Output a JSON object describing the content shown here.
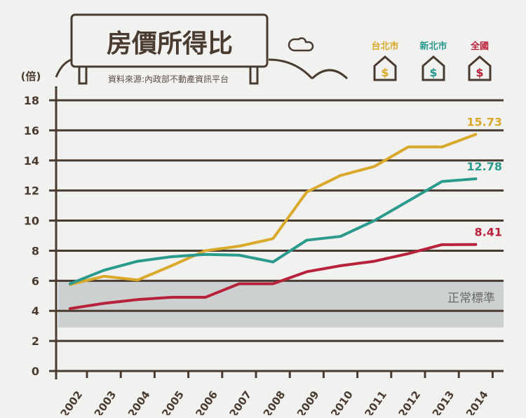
{
  "chart_data": {
    "type": "line",
    "title": "房價所得比",
    "source": "資料來源:內政部不動產資訊平台",
    "ylabel": "(倍)",
    "ylim": [
      0,
      18
    ],
    "yticks": [
      0,
      2,
      4,
      6,
      8,
      10,
      12,
      14,
      16,
      18
    ],
    "categories": [
      "2002",
      "2003",
      "2004",
      "2005",
      "2006",
      "2007",
      "2008",
      "2009",
      "2010",
      "2011",
      "2012",
      "2013",
      "2014"
    ],
    "grid": true,
    "legend_position": "top-right",
    "normal_band": {
      "label": "正常標準",
      "range": [
        2.9,
        6
      ]
    },
    "series": [
      {
        "name": "台北市",
        "color": "#d9a92b",
        "end_label": "15.73",
        "values": [
          5.75,
          6.3,
          6.05,
          7.0,
          8.0,
          8.3,
          8.8,
          11.9,
          13.0,
          13.6,
          14.9,
          14.9,
          15.73
        ]
      },
      {
        "name": "新北市",
        "color": "#2a9a8c",
        "end_label": "12.78",
        "values": [
          5.8,
          6.7,
          7.3,
          7.6,
          7.75,
          7.7,
          7.25,
          8.7,
          8.95,
          10.0,
          11.3,
          12.6,
          12.78
        ]
      },
      {
        "name": "全國",
        "color": "#b8213a",
        "end_label": "8.41",
        "values": [
          4.15,
          4.5,
          4.75,
          4.9,
          4.9,
          5.8,
          5.8,
          6.6,
          7.0,
          7.3,
          7.8,
          8.4,
          8.41
        ]
      }
    ]
  },
  "colors": {
    "axis": "#4a3b30",
    "band": "#ccd0d1",
    "background": "#f1f1f0"
  },
  "legend_icon": "house-dollar-icon",
  "legend_symbol": "$"
}
